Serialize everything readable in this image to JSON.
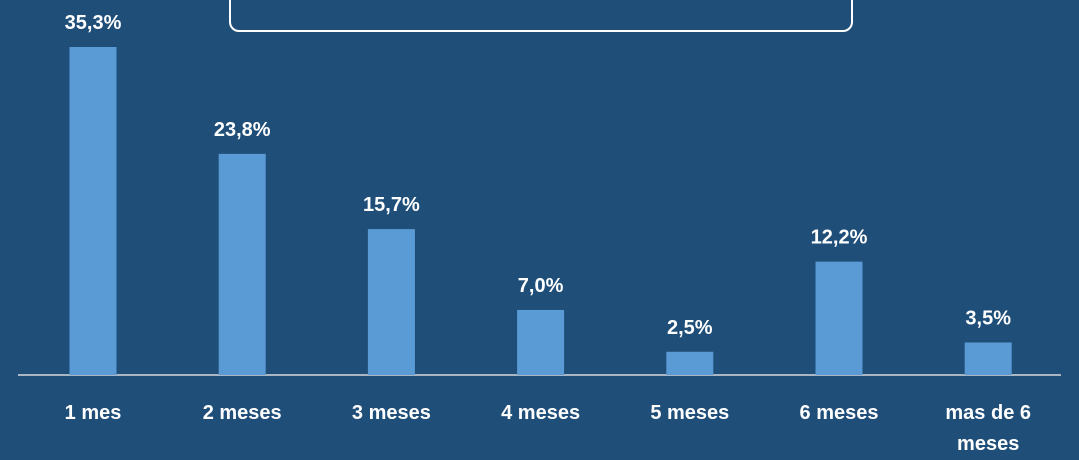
{
  "chart_data": {
    "type": "bar",
    "title": "",
    "xlabel": "",
    "ylabel": "",
    "categories": [
      "1 mes",
      "2 meses",
      "3 meses",
      "4 meses",
      "5 meses",
      "6 meses",
      "mas de 6 meses"
    ],
    "values": [
      35.3,
      23.8,
      15.7,
      7.0,
      2.5,
      12.2,
      3.5
    ],
    "value_labels": [
      "35,3%",
      "23,8%",
      "15,7%",
      "7,0%",
      "2,5%",
      "12,2%",
      "3,5%"
    ],
    "ylim": [
      0,
      35.3
    ],
    "grid": false,
    "legend": "none"
  },
  "colors": {
    "background": "#1f4e79",
    "bar": "#5b9bd5",
    "text": "#ffffff",
    "axis": "#d9d9d9"
  }
}
